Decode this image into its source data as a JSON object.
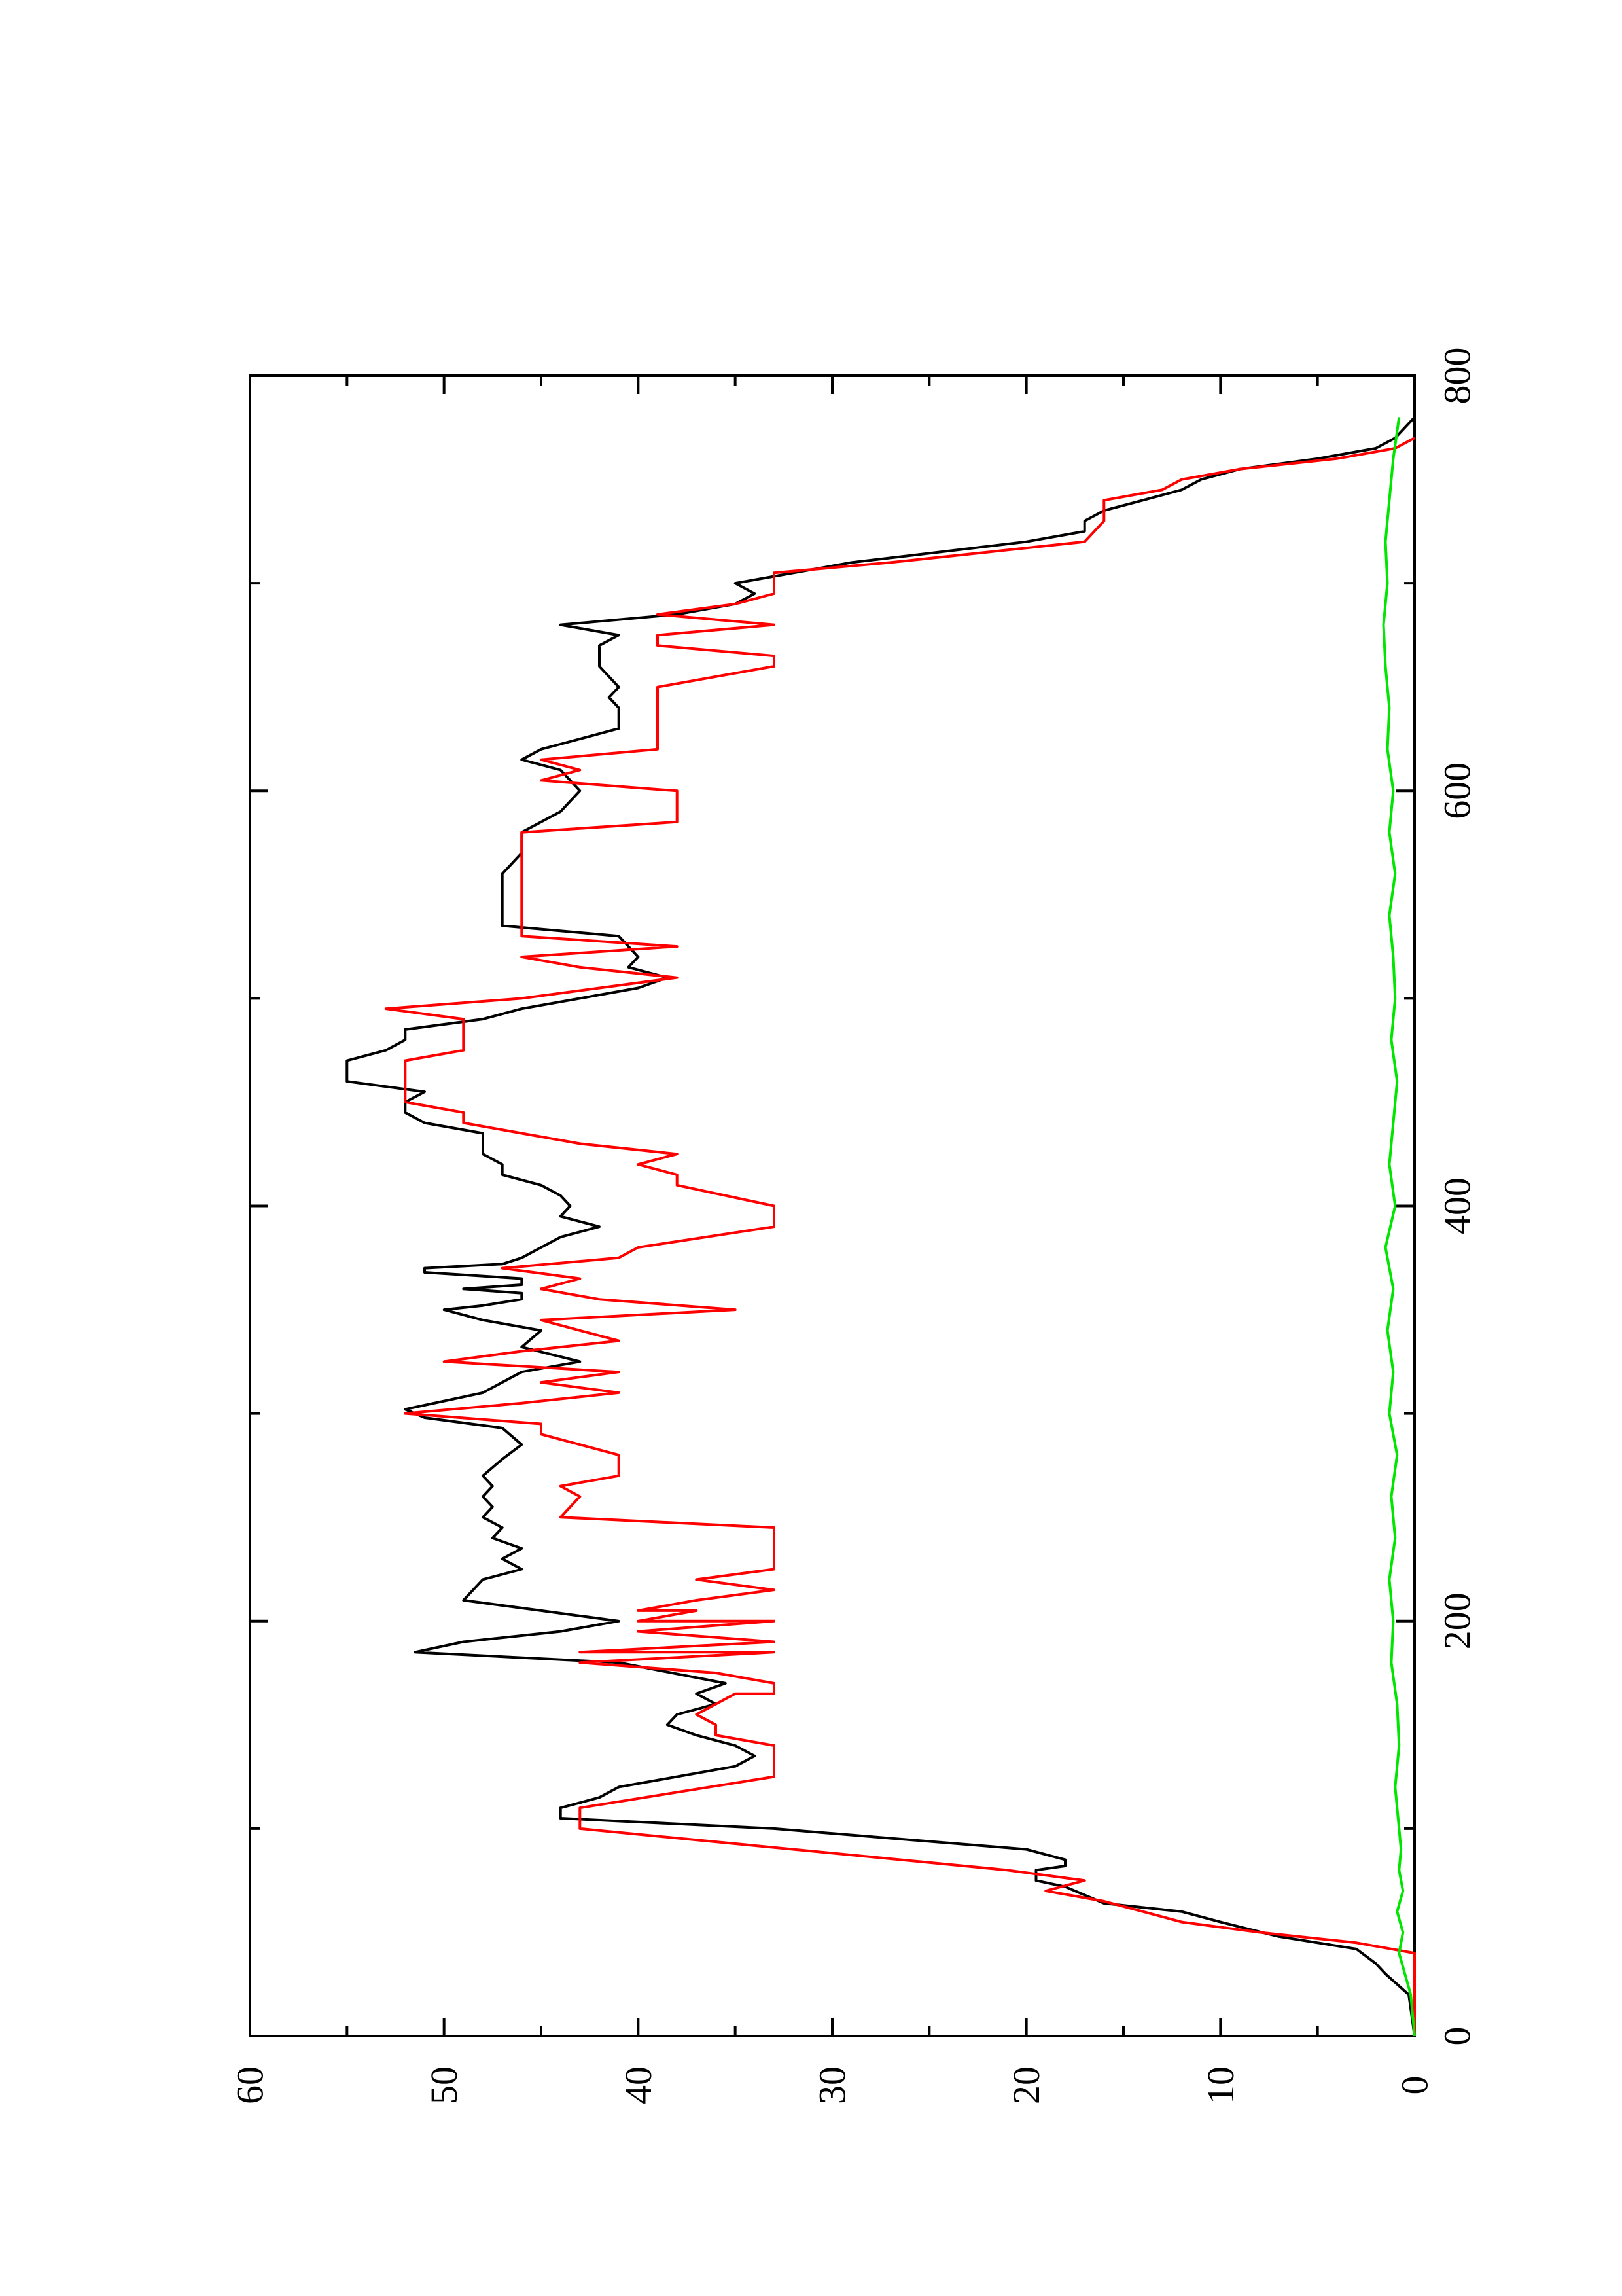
{
  "chart_data": {
    "type": "line",
    "title": "",
    "xlabel": "",
    "ylabel": "",
    "orientation": "rotated-90-ccw",
    "xlim": [
      0,
      800
    ],
    "ylim": [
      0,
      60
    ],
    "x_ticks": [
      "0",
      "200",
      "400",
      "600",
      "800"
    ],
    "y_ticks": [
      "0",
      "10",
      "20",
      "30",
      "40",
      "50",
      "60"
    ],
    "grid": false,
    "legend": "none",
    "series": [
      {
        "color": "#000000",
        "points": [
          [
            0,
            0
          ],
          [
            20,
            0.3
          ],
          [
            30,
            1.5
          ],
          [
            35,
            2
          ],
          [
            42,
            3
          ],
          [
            48,
            7
          ],
          [
            55,
            10
          ],
          [
            60,
            12
          ],
          [
            64,
            16
          ],
          [
            68,
            17
          ],
          [
            72,
            18
          ],
          [
            75,
            19.5
          ],
          [
            80,
            19.5
          ],
          [
            82,
            18
          ],
          [
            85,
            18
          ],
          [
            90,
            20
          ],
          [
            100,
            33
          ],
          [
            105,
            44
          ],
          [
            110,
            44
          ],
          [
            115,
            42
          ],
          [
            120,
            41
          ],
          [
            130,
            35
          ],
          [
            135,
            34
          ],
          [
            140,
            35
          ],
          [
            145,
            37
          ],
          [
            150,
            38.5
          ],
          [
            155,
            38
          ],
          [
            160,
            36
          ],
          [
            165,
            37
          ],
          [
            170,
            35.5
          ],
          [
            180,
            41
          ],
          [
            185,
            51.5
          ],
          [
            190,
            49
          ],
          [
            195,
            44
          ],
          [
            200,
            41
          ],
          [
            205,
            45
          ],
          [
            210,
            49
          ],
          [
            220,
            48
          ],
          [
            225,
            46
          ],
          [
            230,
            47
          ],
          [
            235,
            46
          ],
          [
            240,
            47.5
          ],
          [
            245,
            47
          ],
          [
            250,
            48
          ],
          [
            255,
            47.5
          ],
          [
            260,
            48
          ],
          [
            265,
            47.5
          ],
          [
            270,
            48
          ],
          [
            278,
            47
          ],
          [
            285,
            46
          ],
          [
            293,
            47
          ],
          [
            298,
            51
          ],
          [
            302,
            52
          ],
          [
            310,
            48
          ],
          [
            320,
            46
          ],
          [
            325,
            43
          ],
          [
            332,
            46
          ],
          [
            340,
            45
          ],
          [
            345,
            48
          ],
          [
            350,
            50
          ],
          [
            352,
            48
          ],
          [
            355,
            46
          ],
          [
            358,
            46
          ],
          [
            360,
            49
          ],
          [
            362,
            46
          ],
          [
            365,
            46
          ],
          [
            368,
            51
          ],
          [
            370,
            51
          ],
          [
            372,
            47
          ],
          [
            375,
            46
          ],
          [
            380,
            45
          ],
          [
            385,
            44
          ],
          [
            390,
            42
          ],
          [
            395,
            44
          ],
          [
            400,
            43.5
          ],
          [
            405,
            44
          ],
          [
            410,
            45
          ],
          [
            415,
            47
          ],
          [
            420,
            47
          ],
          [
            425,
            48
          ],
          [
            430,
            48
          ],
          [
            435,
            48
          ],
          [
            440,
            51
          ],
          [
            445,
            52
          ],
          [
            450,
            52
          ],
          [
            455,
            51
          ],
          [
            460,
            55
          ],
          [
            470,
            55
          ],
          [
            475,
            53
          ],
          [
            480,
            52
          ],
          [
            485,
            52
          ],
          [
            490,
            48
          ],
          [
            495,
            46
          ],
          [
            500,
            43
          ],
          [
            505,
            40
          ],
          [
            510,
            38.5
          ],
          [
            515,
            40.5
          ],
          [
            520,
            40
          ],
          [
            525,
            40.5
          ],
          [
            530,
            41
          ],
          [
            535,
            47
          ],
          [
            540,
            47
          ],
          [
            550,
            47
          ],
          [
            560,
            47
          ],
          [
            570,
            46
          ],
          [
            580,
            46
          ],
          [
            590,
            44
          ],
          [
            600,
            43
          ],
          [
            610,
            44
          ],
          [
            615,
            46
          ],
          [
            620,
            45
          ],
          [
            625,
            43
          ],
          [
            630,
            41
          ],
          [
            635,
            41
          ],
          [
            640,
            41
          ],
          [
            645,
            41.5
          ],
          [
            650,
            41
          ],
          [
            660,
            42
          ],
          [
            670,
            42
          ],
          [
            675,
            41
          ],
          [
            680,
            44
          ],
          [
            685,
            38
          ],
          [
            690,
            35
          ],
          [
            695,
            34
          ],
          [
            700,
            35
          ],
          [
            710,
            29
          ],
          [
            720,
            20
          ],
          [
            725,
            17
          ],
          [
            730,
            17
          ],
          [
            735,
            16
          ],
          [
            740,
            14
          ],
          [
            745,
            12
          ],
          [
            750,
            11
          ],
          [
            755,
            9
          ],
          [
            760,
            5
          ],
          [
            765,
            2
          ],
          [
            770,
            1
          ],
          [
            780,
            0
          ]
        ]
      },
      {
        "color": "#ff0000",
        "points": [
          [
            0,
            0
          ],
          [
            40,
            0
          ],
          [
            45,
            3
          ],
          [
            50,
            8
          ],
          [
            55,
            12
          ],
          [
            60,
            14
          ],
          [
            65,
            16
          ],
          [
            70,
            19
          ],
          [
            75,
            17
          ],
          [
            80,
            21
          ],
          [
            100,
            43
          ],
          [
            105,
            43
          ],
          [
            110,
            43
          ],
          [
            125,
            33
          ],
          [
            130,
            33
          ],
          [
            140,
            33
          ],
          [
            145,
            36
          ],
          [
            150,
            36
          ],
          [
            155,
            37
          ],
          [
            160,
            36
          ],
          [
            165,
            35
          ],
          [
            165,
            33
          ],
          [
            170,
            33
          ],
          [
            175,
            36
          ],
          [
            180,
            43
          ],
          [
            185,
            33
          ],
          [
            185,
            43
          ],
          [
            190,
            33
          ],
          [
            195,
            40
          ],
          [
            200,
            33
          ],
          [
            200,
            40
          ],
          [
            205,
            37
          ],
          [
            205,
            40
          ],
          [
            210,
            37
          ],
          [
            215,
            33
          ],
          [
            220,
            37
          ],
          [
            225,
            33
          ],
          [
            230,
            33
          ],
          [
            240,
            33
          ],
          [
            245,
            33
          ],
          [
            250,
            44
          ],
          [
            260,
            43
          ],
          [
            265,
            44
          ],
          [
            270,
            41
          ],
          [
            280,
            41
          ],
          [
            290,
            45
          ],
          [
            295,
            45
          ],
          [
            300,
            52
          ],
          [
            305,
            46
          ],
          [
            310,
            41
          ],
          [
            315,
            45
          ],
          [
            320,
            41
          ],
          [
            325,
            50
          ],
          [
            330,
            46
          ],
          [
            335,
            41
          ],
          [
            340,
            43
          ],
          [
            345,
            45
          ],
          [
            350,
            35
          ],
          [
            355,
            42
          ],
          [
            360,
            45
          ],
          [
            365,
            43
          ],
          [
            370,
            47
          ],
          [
            375,
            41
          ],
          [
            380,
            40
          ],
          [
            390,
            33
          ],
          [
            400,
            33
          ],
          [
            410,
            38
          ],
          [
            415,
            38
          ],
          [
            420,
            40
          ],
          [
            425,
            38
          ],
          [
            430,
            43
          ],
          [
            440,
            49
          ],
          [
            445,
            49
          ],
          [
            450,
            52
          ],
          [
            460,
            52
          ],
          [
            470,
            52
          ],
          [
            475,
            49
          ],
          [
            480,
            49
          ],
          [
            490,
            49
          ],
          [
            495,
            53
          ],
          [
            500,
            46
          ],
          [
            510,
            38
          ],
          [
            515,
            43
          ],
          [
            520,
            46
          ],
          [
            525,
            38
          ],
          [
            530,
            46
          ],
          [
            535,
            46
          ],
          [
            540,
            46
          ],
          [
            580,
            46
          ],
          [
            585,
            38
          ],
          [
            590,
            38
          ],
          [
            600,
            38
          ],
          [
            605,
            45
          ],
          [
            610,
            43
          ],
          [
            615,
            45
          ],
          [
            620,
            39
          ],
          [
            630,
            39
          ],
          [
            650,
            39
          ],
          [
            660,
            33
          ],
          [
            665,
            33
          ],
          [
            670,
            39
          ],
          [
            675,
            39
          ],
          [
            680,
            33
          ],
          [
            685,
            39
          ],
          [
            690,
            35
          ],
          [
            695,
            33
          ],
          [
            700,
            33
          ],
          [
            705,
            33
          ],
          [
            710,
            27
          ],
          [
            715,
            22
          ],
          [
            720,
            17
          ],
          [
            730,
            16
          ],
          [
            740,
            16
          ],
          [
            745,
            13
          ],
          [
            750,
            12
          ],
          [
            755,
            9
          ],
          [
            760,
            4
          ],
          [
            765,
            1
          ],
          [
            770,
            0
          ]
        ]
      },
      {
        "color": "#00e600",
        "points": [
          [
            0,
            0
          ],
          [
            20,
            0.2
          ],
          [
            30,
            0.5
          ],
          [
            40,
            0.8
          ],
          [
            50,
            0.6
          ],
          [
            60,
            0.9
          ],
          [
            70,
            0.6
          ],
          [
            80,
            0.8
          ],
          [
            90,
            0.7
          ],
          [
            100,
            0.8
          ],
          [
            120,
            1.0
          ],
          [
            140,
            0.8
          ],
          [
            160,
            0.9
          ],
          [
            180,
            1.2
          ],
          [
            200,
            1.1
          ],
          [
            220,
            1.3
          ],
          [
            240,
            1.0
          ],
          [
            260,
            1.2
          ],
          [
            280,
            0.9
          ],
          [
            300,
            1.3
          ],
          [
            320,
            1.1
          ],
          [
            340,
            1.4
          ],
          [
            360,
            1.1
          ],
          [
            380,
            1.5
          ],
          [
            400,
            1.0
          ],
          [
            420,
            1.3
          ],
          [
            440,
            1.1
          ],
          [
            460,
            0.9
          ],
          [
            480,
            1.2
          ],
          [
            500,
            1.0
          ],
          [
            520,
            1.1
          ],
          [
            540,
            1.3
          ],
          [
            560,
            1.0
          ],
          [
            580,
            1.3
          ],
          [
            600,
            1.1
          ],
          [
            620,
            1.4
          ],
          [
            640,
            1.3
          ],
          [
            660,
            1.5
          ],
          [
            680,
            1.6
          ],
          [
            700,
            1.4
          ],
          [
            720,
            1.5
          ],
          [
            740,
            1.3
          ],
          [
            760,
            1.1
          ],
          [
            780,
            0.8
          ]
        ]
      }
    ]
  }
}
